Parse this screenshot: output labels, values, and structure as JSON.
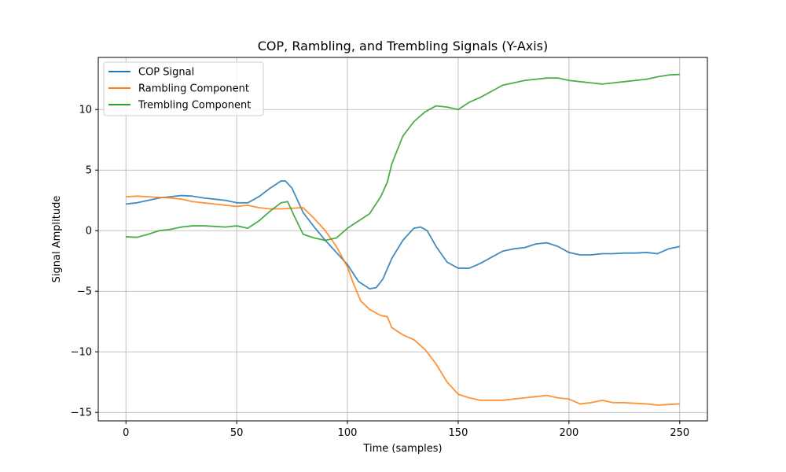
{
  "chart_data": {
    "type": "line",
    "title": "COP, Rambling, and Trembling Signals (Y-Axis)",
    "xlabel": "Time (samples)",
    "ylabel": "Signal Amplitude",
    "xlim": [
      -12.5,
      262.5
    ],
    "ylim": [
      -15.7,
      14.3
    ],
    "xticks": [
      0,
      50,
      100,
      150,
      200,
      250
    ],
    "yticks": [
      -15,
      -10,
      -5,
      0,
      5,
      10
    ],
    "xtick_labels": [
      "0",
      "50",
      "100",
      "150",
      "200",
      "250"
    ],
    "ytick_labels": [
      "−15",
      "−10",
      "−5",
      "0",
      "5",
      "10"
    ],
    "grid": true,
    "legend_position": "top-left",
    "series": [
      {
        "name": "COP Signal",
        "color": "#1f77b4",
        "x": [
          0,
          5,
          10,
          15,
          20,
          25,
          30,
          35,
          40,
          45,
          50,
          55,
          60,
          65,
          70,
          72,
          75,
          80,
          85,
          90,
          95,
          100,
          105,
          110,
          113,
          116,
          120,
          125,
          130,
          133,
          136,
          140,
          145,
          150,
          155,
          160,
          165,
          170,
          175,
          180,
          185,
          190,
          195,
          200,
          205,
          210,
          215,
          220,
          225,
          230,
          235,
          240,
          245,
          250
        ],
        "y": [
          2.2,
          2.3,
          2.5,
          2.7,
          2.8,
          2.9,
          2.85,
          2.7,
          2.6,
          2.5,
          2.3,
          2.3,
          2.8,
          3.5,
          4.1,
          4.1,
          3.5,
          1.5,
          0.3,
          -0.8,
          -1.8,
          -2.8,
          -4.2,
          -4.8,
          -4.7,
          -4.0,
          -2.3,
          -0.8,
          0.2,
          0.3,
          0.0,
          -1.3,
          -2.6,
          -3.1,
          -3.1,
          -2.7,
          -2.2,
          -1.7,
          -1.5,
          -1.4,
          -1.1,
          -1.0,
          -1.3,
          -1.8,
          -2.0,
          -2.0,
          -1.9,
          -1.9,
          -1.85,
          -1.85,
          -1.8,
          -1.9,
          -1.5,
          -1.3
        ]
      },
      {
        "name": "Rambling Component",
        "color": "#ff7f0e",
        "x": [
          0,
          5,
          10,
          15,
          20,
          25,
          30,
          35,
          40,
          45,
          50,
          55,
          60,
          65,
          70,
          75,
          80,
          85,
          90,
          95,
          100,
          103,
          106,
          110,
          115,
          118,
          120,
          125,
          130,
          135,
          140,
          145,
          150,
          155,
          160,
          165,
          170,
          175,
          180,
          185,
          190,
          195,
          200,
          205,
          210,
          215,
          220,
          225,
          230,
          235,
          240,
          245,
          250
        ],
        "y": [
          2.8,
          2.85,
          2.8,
          2.75,
          2.7,
          2.6,
          2.4,
          2.3,
          2.2,
          2.1,
          2.0,
          2.1,
          1.9,
          1.8,
          1.8,
          1.85,
          1.9,
          1.0,
          0.0,
          -1.3,
          -3.0,
          -4.5,
          -5.8,
          -6.5,
          -7.0,
          -7.1,
          -8.0,
          -8.6,
          -9.0,
          -9.8,
          -11.0,
          -12.5,
          -13.5,
          -13.8,
          -14.0,
          -14.0,
          -14.0,
          -13.9,
          -13.8,
          -13.7,
          -13.6,
          -13.8,
          -13.9,
          -14.3,
          -14.2,
          -14.0,
          -14.2,
          -14.2,
          -14.25,
          -14.3,
          -14.4,
          -14.35,
          -14.3
        ]
      },
      {
        "name": "Trembling Component",
        "color": "#2ca02c",
        "x": [
          0,
          5,
          10,
          15,
          20,
          25,
          30,
          35,
          40,
          45,
          50,
          55,
          60,
          65,
          70,
          73,
          76,
          80,
          85,
          90,
          95,
          100,
          105,
          110,
          115,
          118,
          120,
          125,
          130,
          135,
          140,
          145,
          150,
          155,
          160,
          165,
          170,
          175,
          180,
          185,
          190,
          195,
          200,
          205,
          210,
          215,
          220,
          225,
          230,
          235,
          240,
          245,
          250
        ],
        "y": [
          -0.5,
          -0.55,
          -0.3,
          0.0,
          0.1,
          0.3,
          0.4,
          0.4,
          0.35,
          0.3,
          0.4,
          0.2,
          0.8,
          1.6,
          2.3,
          2.4,
          1.2,
          -0.3,
          -0.6,
          -0.8,
          -0.6,
          0.2,
          0.8,
          1.4,
          2.8,
          4.0,
          5.5,
          7.8,
          9.0,
          9.8,
          10.3,
          10.2,
          10.0,
          10.6,
          11.0,
          11.5,
          12.0,
          12.2,
          12.4,
          12.5,
          12.6,
          12.6,
          12.4,
          12.3,
          12.2,
          12.1,
          12.2,
          12.3,
          12.4,
          12.5,
          12.7,
          12.85,
          12.9
        ]
      }
    ]
  }
}
